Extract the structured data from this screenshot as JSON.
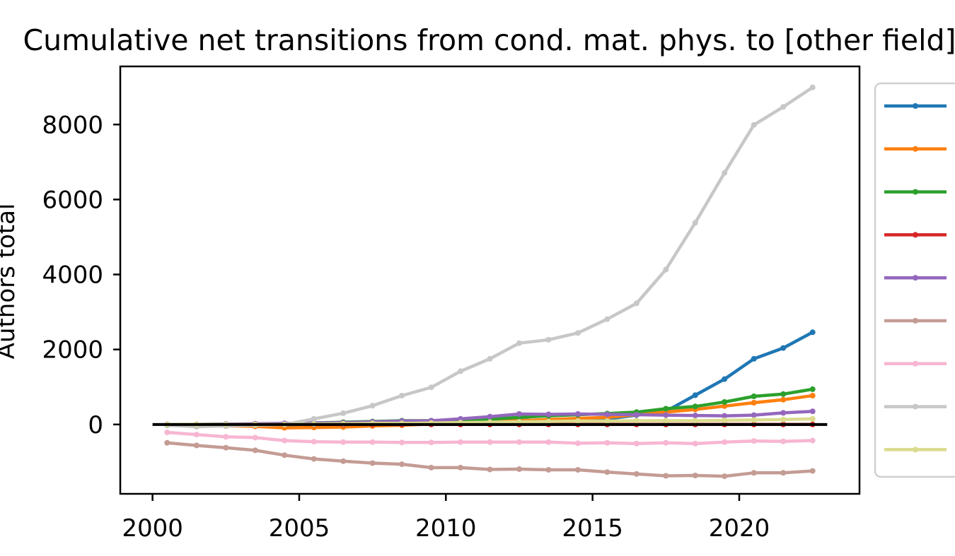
{
  "chart_data": {
    "type": "line",
    "title": "Cumulative net transitions from cond. mat. phys. to [other field]",
    "ylabel": "Authors total",
    "xlim": [
      1998.9,
      2024.1
    ],
    "ylim": [
      -1850,
      9550
    ],
    "xticks": [
      2000,
      2005,
      2010,
      2015,
      2020
    ],
    "yticks": [
      0,
      2000,
      4000,
      6000,
      8000
    ],
    "grid": false,
    "legend_position": "outside-right",
    "x": [
      2000.5,
      2001.5,
      2002.5,
      2003.5,
      2004.5,
      2005.5,
      2006.5,
      2007.5,
      2008.5,
      2009.5,
      2010.5,
      2011.5,
      2012.5,
      2013.5,
      2014.5,
      2015.5,
      2016.5,
      2017.5,
      2018.5,
      2019.5,
      2020.5,
      2021.5,
      2022.5
    ],
    "series": [
      {
        "color": "#1f77b4",
        "values": [
          -20,
          -30,
          -40,
          -30,
          -10,
          0,
          10,
          20,
          40,
          60,
          80,
          100,
          110,
          120,
          130,
          150,
          250,
          350,
          780,
          1210,
          1750,
          2040,
          2460
        ]
      },
      {
        "color": "#ff7f0e",
        "values": [
          -10,
          -20,
          -40,
          -50,
          -90,
          -80,
          -70,
          -40,
          -20,
          10,
          40,
          70,
          100,
          130,
          160,
          190,
          260,
          330,
          400,
          490,
          580,
          660,
          770
        ]
      },
      {
        "color": "#2ca02c",
        "values": [
          0,
          0,
          10,
          10,
          20,
          40,
          60,
          80,
          100,
          100,
          120,
          140,
          190,
          230,
          260,
          290,
          330,
          420,
          480,
          600,
          750,
          810,
          940
        ]
      },
      {
        "color": "#d62728",
        "values": [
          0,
          0,
          0,
          0,
          0,
          0,
          0,
          0,
          0,
          0,
          0,
          0,
          0,
          0,
          0,
          0,
          0,
          0,
          0,
          0,
          0,
          0,
          0
        ]
      },
      {
        "color": "#9467bd",
        "values": [
          0,
          0,
          10,
          20,
          30,
          40,
          50,
          70,
          90,
          100,
          150,
          210,
          280,
          270,
          280,
          270,
          260,
          250,
          240,
          230,
          250,
          310,
          350
        ]
      },
      {
        "color": "#c49c94",
        "values": [
          -490,
          -560,
          -620,
          -690,
          -820,
          -920,
          -980,
          -1030,
          -1060,
          -1150,
          -1150,
          -1200,
          -1190,
          -1210,
          -1210,
          -1270,
          -1320,
          -1370,
          -1360,
          -1380,
          -1290,
          -1290,
          -1240
        ]
      },
      {
        "color": "#f7b6d2",
        "values": [
          -210,
          -270,
          -330,
          -350,
          -430,
          -460,
          -470,
          -470,
          -480,
          -480,
          -470,
          -470,
          -470,
          -470,
          -500,
          -490,
          -510,
          -490,
          -510,
          -470,
          -440,
          -450,
          -430
        ]
      },
      {
        "color": "#c7c7c7",
        "values": [
          -20,
          -60,
          -40,
          -20,
          0,
          150,
          300,
          500,
          770,
          990,
          1420,
          1750,
          2170,
          2260,
          2440,
          2810,
          3230,
          4130,
          5380,
          6710,
          7990,
          8470,
          8990
        ]
      },
      {
        "color": "#dbdb8d",
        "values": [
          0,
          0,
          0,
          0,
          0,
          10,
          20,
          30,
          30,
          40,
          50,
          60,
          70,
          80,
          90,
          90,
          100,
          100,
          100,
          110,
          120,
          130,
          150
        ]
      }
    ],
    "baseline": {
      "y": 0,
      "x_range": [
        2000,
        2023
      ],
      "color": "#000000"
    }
  }
}
